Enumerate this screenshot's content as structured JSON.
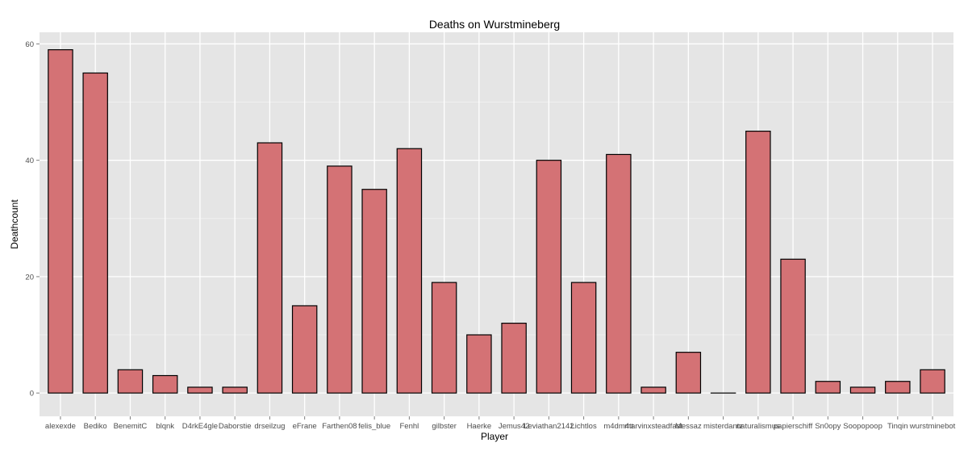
{
  "chart_data": {
    "type": "bar",
    "title": "Deaths on Wurstmineberg",
    "xlabel": "Player",
    "ylabel": "Deathcount",
    "ylim": [
      -4,
      62
    ],
    "yticks": [
      0,
      20,
      40,
      60
    ],
    "grid": true,
    "categories": [
      "alexexde",
      "Bediko",
      "BenemitC",
      "blqnk",
      "D4rkE4gle",
      "Daborstie",
      "drseilzug",
      "eFrane",
      "Farthen08",
      "felis_blue",
      "Fenhl",
      "gilbster",
      "Haerke",
      "Jemus42",
      "Leviathan2142",
      "Lichtlos",
      "m4dm4tt",
      "marvinxsteadfast",
      "Messaz",
      "misterdantz",
      "naturalismus",
      "papierschiff",
      "Sn0opy",
      "Soopopoop",
      "Tinqin",
      "wurstminebot"
    ],
    "values": [
      59,
      55,
      4,
      3,
      1,
      1,
      43,
      15,
      39,
      35,
      42,
      19,
      10,
      12,
      40,
      19,
      41,
      1,
      7,
      0,
      45,
      23,
      2,
      1,
      2,
      4
    ],
    "colors": {
      "panel": "#e5e5e5",
      "grid_major": "#ffffff",
      "grid_minor": "#f2f2f2",
      "bar_fill": "#d47275",
      "bar_stroke": "#000000"
    }
  }
}
